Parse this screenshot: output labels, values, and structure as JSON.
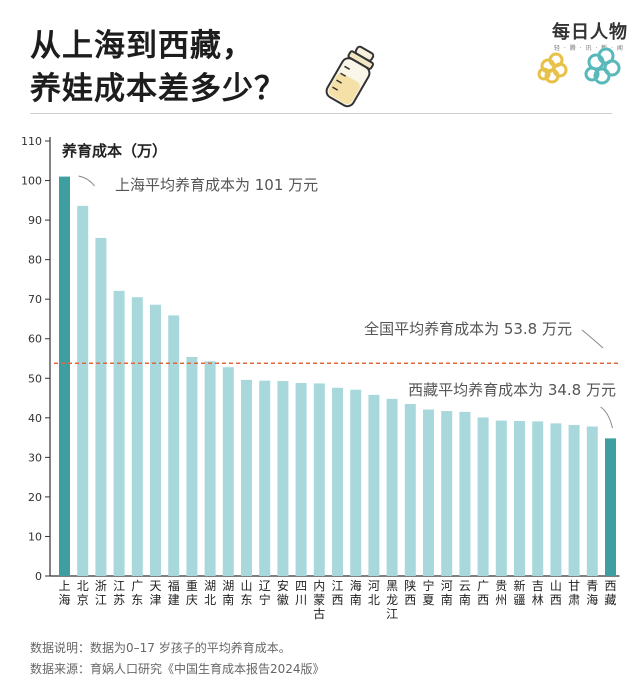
{
  "header": {
    "title_line1": "从上海到西藏，",
    "title_line2": "养娃成本差多少？"
  },
  "logo": {
    "name": "每日人物",
    "sub": "轻 · 腾 · 讯 · 新 · 闻"
  },
  "colors": {
    "bar": "#a8d8db",
    "highlight": "#3f9e9f",
    "avg_line": "#e0673a",
    "axis": "#333333",
    "annotation": "#555555"
  },
  "chart_data": {
    "type": "bar",
    "title": "养育成本（万）",
    "ylabel": "养育成本（万）",
    "ylim": [
      0,
      110
    ],
    "yticks": [
      0,
      10,
      20,
      30,
      40,
      50,
      60,
      70,
      80,
      90,
      100,
      110
    ],
    "categories": [
      "上海",
      "北京",
      "浙江",
      "江苏",
      "广东",
      "天津",
      "福建",
      "重庆",
      "湖北",
      "湖南",
      "山东",
      "辽宁",
      "安徽",
      "四川",
      "内蒙古",
      "江西",
      "海南",
      "河北",
      "黑龙江",
      "陕西",
      "宁夏",
      "河南",
      "云南",
      "广西",
      "贵州",
      "新疆",
      "吉林",
      "山西",
      "甘肃",
      "青海",
      "西藏"
    ],
    "values": [
      101,
      93.6,
      85.5,
      72.1,
      70.5,
      68.6,
      65.9,
      55.4,
      54.3,
      52.8,
      49.6,
      49.4,
      49.3,
      48.8,
      48.7,
      47.6,
      47.1,
      45.8,
      44.8,
      43.5,
      42.1,
      41.7,
      41.5,
      40.1,
      39.3,
      39.2,
      39.1,
      38.6,
      38.2,
      37.8,
      34.8
    ],
    "highlighted": [
      "上海",
      "西藏"
    ],
    "reference_line": {
      "label": "全国平均养育成本为 53.8 万元",
      "value": 53.8
    },
    "annotations": [
      {
        "label": "上海平均养育成本为 101 万元",
        "category": "上海"
      },
      {
        "label": "西藏平均养育成本为 34.8 万元",
        "category": "西藏"
      }
    ]
  },
  "footer": {
    "note": "数据说明：数据为0–17 岁孩子的平均养育成本。",
    "source": "数据来源：育娲人口研究《中国生育成本报告2024版》"
  }
}
